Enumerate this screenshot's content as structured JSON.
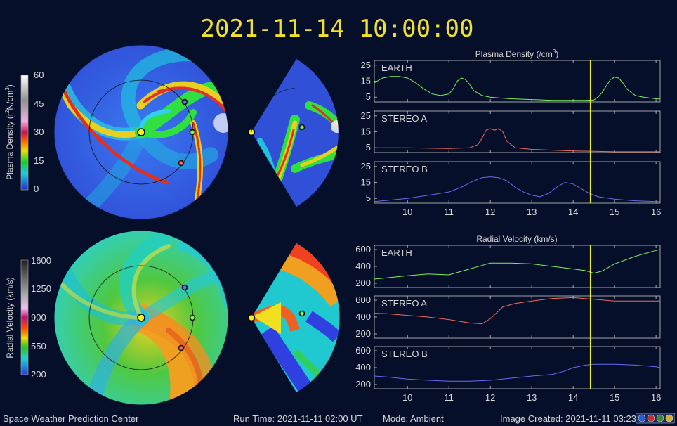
{
  "timestamp": "2021-11-14 10:00:00",
  "footer": {
    "org": "Space Weather Prediction Center",
    "run_time": "Run Time: 2021-11-11 02:00 UT",
    "mode": "Mode: Ambient",
    "image_created": "Image Created: 2021-11-11 03:23 UT"
  },
  "colorbars": {
    "density": {
      "label_pre": "Plasma Density (r",
      "label_sup1": "2",
      "label_mid": "N/cm",
      "label_sup2": "3",
      "label_post": ")",
      "ticks": [
        "60",
        "45",
        "30",
        "15",
        "0"
      ]
    },
    "velocity": {
      "label": "Radial Velocity (km/s)",
      "ticks": [
        "1600",
        "1250",
        "900",
        "550",
        "200"
      ]
    }
  },
  "colors": {
    "background": "#050f2a",
    "title": "#f0e030",
    "earth": "#7cf05a",
    "stereo_a": "#f06a5a",
    "stereo_b": "#6a6af5",
    "marker": "#f0f020",
    "text": "#d8d8d8"
  },
  "chart_data": [
    {
      "type": "line",
      "title_pre": "Plasma Density (/cm",
      "title_sup": "3",
      "title_post": ")",
      "xlim": [
        9.2,
        16.1
      ],
      "xticks": [
        "10",
        "11",
        "12",
        "13",
        "14",
        "15",
        "16"
      ],
      "current_time": 14.42,
      "panels": [
        {
          "name": "EARTH",
          "color": "earth",
          "ylim": [
            2,
            28
          ],
          "yticks": [
            "25",
            "15",
            "5"
          ],
          "x": [
            9.2,
            9.4,
            9.6,
            9.8,
            10.0,
            10.2,
            10.4,
            10.6,
            10.8,
            11.0,
            11.1,
            11.2,
            11.3,
            11.4,
            11.5,
            11.6,
            11.8,
            12.0,
            12.2,
            12.5,
            13.0,
            13.5,
            14.0,
            14.3,
            14.5,
            14.6,
            14.7,
            14.8,
            14.9,
            15.0,
            15.1,
            15.2,
            15.3,
            15.5,
            15.7,
            16.0,
            16.1
          ],
          "y": [
            14,
            17,
            18,
            18,
            17,
            14,
            10,
            7,
            6,
            7,
            10,
            15,
            17,
            16,
            13,
            9,
            6,
            5,
            4.5,
            4,
            3.5,
            3,
            3,
            3,
            3.2,
            5,
            8,
            12,
            16,
            17.5,
            17,
            14,
            10,
            6,
            5,
            4,
            3.8
          ]
        },
        {
          "name": "STEREO A",
          "color": "stereo_a",
          "ylim": [
            2,
            28
          ],
          "yticks": [
            "25",
            "15",
            "5"
          ],
          "x": [
            9.2,
            10.0,
            11.0,
            11.5,
            11.7,
            11.8,
            11.9,
            12.0,
            12.1,
            12.2,
            12.3,
            12.4,
            12.6,
            13.0,
            13.5,
            14.0,
            14.5,
            15.0,
            15.5,
            16.0,
            16.1
          ],
          "y": [
            5,
            5,
            4.5,
            5,
            7,
            11,
            16,
            17,
            16,
            17,
            15,
            9,
            5,
            4,
            3.5,
            3,
            2.8,
            2.5,
            2.5,
            2.5,
            2.5
          ]
        },
        {
          "name": "STEREO B",
          "color": "stereo_b",
          "ylim": [
            2,
            28
          ],
          "yticks": [
            "25",
            "15",
            "5"
          ],
          "x": [
            9.2,
            9.6,
            10.0,
            10.5,
            11.0,
            11.3,
            11.6,
            11.8,
            12.0,
            12.2,
            12.4,
            12.6,
            12.8,
            13.0,
            13.2,
            13.4,
            13.6,
            13.8,
            14.0,
            14.2,
            14.4,
            14.6,
            15.0,
            15.5,
            16.0,
            16.1
          ],
          "y": [
            3,
            4,
            5,
            7,
            9,
            12,
            16,
            18,
            18.5,
            18,
            16,
            12,
            9,
            7,
            6,
            8,
            12,
            15,
            14,
            11,
            8,
            6,
            4.5,
            3.5,
            3,
            3
          ]
        }
      ]
    },
    {
      "type": "line",
      "title": "Radial Velocity (km/s)",
      "xlim": [
        9.2,
        16.1
      ],
      "xticks": [
        "10",
        "11",
        "12",
        "13",
        "14",
        "15",
        "16"
      ],
      "current_time": 14.42,
      "panels": [
        {
          "name": "EARTH",
          "color": "earth",
          "ylim": [
            150,
            650
          ],
          "yticks": [
            "600",
            "400",
            "200"
          ],
          "x": [
            9.2,
            9.5,
            10.0,
            10.5,
            11.0,
            11.5,
            12.0,
            12.5,
            13.0,
            13.5,
            14.0,
            14.3,
            14.5,
            14.7,
            15.0,
            15.5,
            16.0,
            16.1
          ],
          "y": [
            250,
            265,
            290,
            310,
            300,
            370,
            440,
            440,
            430,
            400,
            370,
            350,
            320,
            345,
            430,
            520,
            590,
            600
          ]
        },
        {
          "name": "STEREO A",
          "color": "stereo_a",
          "ylim": [
            150,
            650
          ],
          "yticks": [
            "600",
            "400",
            "200"
          ],
          "x": [
            9.2,
            9.5,
            10.0,
            10.5,
            11.0,
            11.5,
            11.8,
            12.0,
            12.3,
            12.6,
            13.0,
            13.5,
            14.0,
            14.5,
            15.0,
            15.5,
            16.0,
            16.1
          ],
          "y": [
            445,
            440,
            420,
            400,
            370,
            330,
            320,
            380,
            520,
            560,
            590,
            620,
            630,
            610,
            590,
            590,
            590,
            590
          ]
        },
        {
          "name": "STEREO B",
          "color": "stereo_b",
          "ylim": [
            150,
            650
          ],
          "yticks": [
            "600",
            "400",
            "200"
          ],
          "x": [
            9.2,
            9.5,
            10.0,
            10.5,
            11.0,
            11.5,
            12.0,
            12.5,
            13.0,
            13.5,
            13.8,
            14.0,
            14.3,
            14.5,
            15.0,
            15.5,
            16.0,
            16.1
          ],
          "y": [
            300,
            290,
            265,
            250,
            240,
            240,
            250,
            275,
            300,
            320,
            360,
            400,
            430,
            440,
            440,
            430,
            410,
            400
          ]
        }
      ]
    }
  ],
  "heliospheric_maps": {
    "objects": [
      {
        "name": "Sun",
        "color": "marker"
      },
      {
        "name": "EARTH",
        "color": "earth"
      },
      {
        "name": "STEREO A",
        "color": "stereo_a"
      },
      {
        "name": "STEREO B",
        "color": "stereo_b"
      }
    ]
  }
}
